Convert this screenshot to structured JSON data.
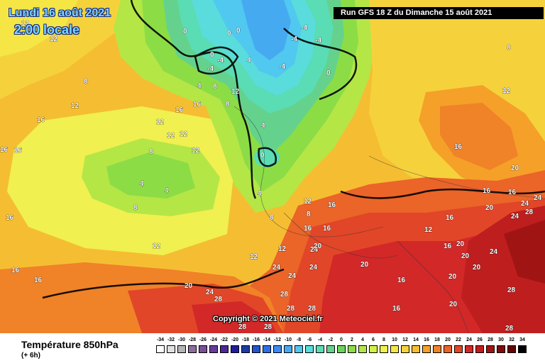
{
  "header": {
    "date_line1": "Lundi 16 août 2021",
    "date_line2": "2:00 locale",
    "run_banner": "Run GFS 18 Z du Dimanche 15 août 2021",
    "copyright": "Copyright © 2021 Meteociel.fr"
  },
  "legend": {
    "title": "Température 850hPa",
    "subtitle": "(+ 6h)",
    "ticks": [
      "-34",
      "-32",
      "-30",
      "-28",
      "-26",
      "-24",
      "-22",
      "-20",
      "-18",
      "-16",
      "-14",
      "-12",
      "-10",
      "-8",
      "-6",
      "-4",
      "-2",
      "0",
      "2",
      "4",
      "6",
      "8",
      "10",
      "12",
      "14",
      "16",
      "18",
      "20",
      "22",
      "24",
      "26",
      "28",
      "30",
      "32",
      "34"
    ],
    "colors": [
      "#ffffff",
      "#e0e0e0",
      "#b4b4b4",
      "#8c6e9e",
      "#7a4f96",
      "#643c96",
      "#4b2896",
      "#1e1e9b",
      "#1e3ca0",
      "#2355c8",
      "#2d6ee6",
      "#3c8cf0",
      "#46aaf0",
      "#50c8f0",
      "#5adcdc",
      "#5adcb4",
      "#64d28c",
      "#6ed25a",
      "#8cdc46",
      "#b4e646",
      "#d2f046",
      "#f0f050",
      "#f5e646",
      "#f5d23c",
      "#f5be32",
      "#f5a028",
      "#f08228",
      "#eb6428",
      "#e14628",
      "#d22828",
      "#be1e1e",
      "#a01414",
      "#820a0a",
      "#640505",
      "#000000"
    ]
  },
  "map": {
    "isotherm_labels": [
      "0",
      "4",
      "8",
      "12",
      "16",
      "20",
      "24",
      "28",
      "-4",
      "-8"
    ]
  }
}
